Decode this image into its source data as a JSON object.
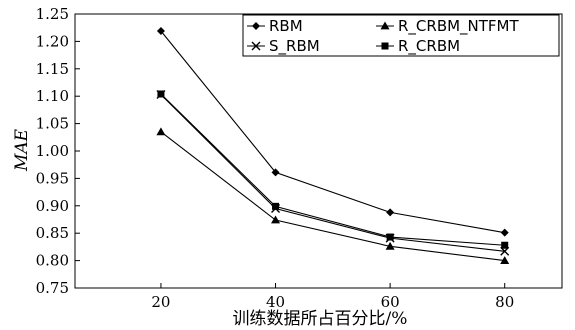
{
  "chart_data": {
    "type": "line",
    "title": "",
    "xlabel": "训练数据所占百分比/%",
    "ylabel": "MAE",
    "x": [
      20,
      40,
      60,
      80
    ],
    "xlim": [
      5,
      90
    ],
    "ylim": [
      0.75,
      1.25
    ],
    "x_ticks": [
      "20",
      "40",
      "60",
      "80"
    ],
    "y_ticks": [
      "0.75",
      "0.80",
      "0.85",
      "0.90",
      "0.95",
      "1.00",
      "1.05",
      "1.10",
      "1.15",
      "1.20",
      "1.25"
    ],
    "grid": false,
    "legend_position": "top-right",
    "series": [
      {
        "name": "RBM",
        "marker": "diamond",
        "values": [
          1.219,
          0.961,
          0.888,
          0.851
        ]
      },
      {
        "name": "R_CRBM_NTFMT",
        "marker": "triangle",
        "values": [
          1.035,
          0.874,
          0.826,
          0.8
        ]
      },
      {
        "name": "S_RBM",
        "marker": "x",
        "values": [
          1.103,
          0.895,
          0.841,
          0.817
        ]
      },
      {
        "name": "R_CRBM",
        "marker": "square",
        "values": [
          1.104,
          0.899,
          0.843,
          0.828
        ]
      }
    ]
  }
}
